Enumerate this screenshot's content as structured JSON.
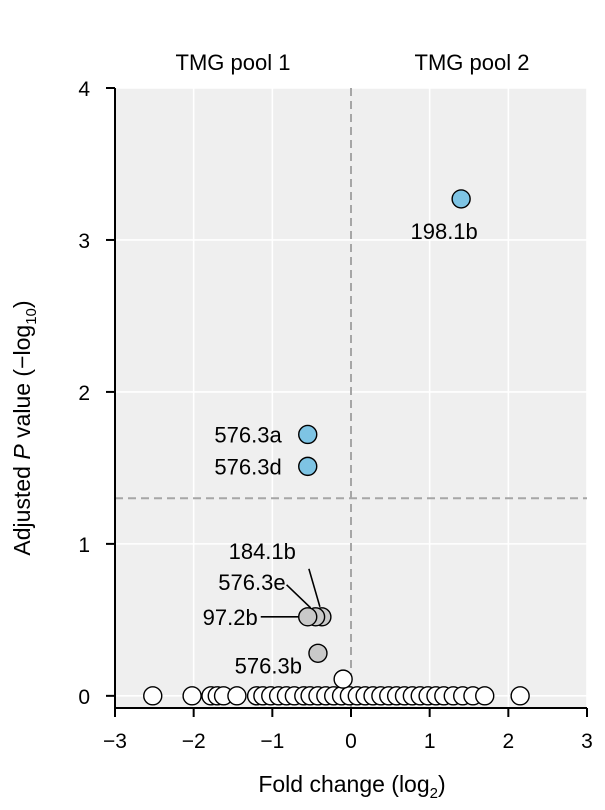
{
  "chart_data": {
    "type": "scatter",
    "title": "",
    "xlabel": "Fold change (log",
    "xlabel_sub": "2",
    "xlabel_end": ")",
    "ylabel": "Adjusted ",
    "ylabel_italic": "P",
    "ylabel_mid": " value (−log",
    "ylabel_sub": "10",
    "ylabel_end": ")",
    "xlim": [
      -3,
      3
    ],
    "ylim": [
      -0.08,
      4
    ],
    "x_ticks": [
      -3,
      -2,
      -1,
      0,
      1,
      2,
      3
    ],
    "x_tick_labels": [
      "−3",
      "−2",
      "−1",
      "0",
      "1",
      "2",
      "3"
    ],
    "y_ticks": [
      0,
      1,
      2,
      3,
      4
    ],
    "y_tick_labels": [
      "0",
      "1",
      "2",
      "3",
      "4"
    ],
    "grid": true,
    "reference_lines": {
      "vertical_x": 0,
      "horizontal_y": 1.3
    },
    "group_labels": {
      "left": "TMG pool 1",
      "right": "TMG pool 2"
    },
    "colors": {
      "significant": "#7ec4e4",
      "labeled": "#c9c9c9",
      "other": "#ffffff",
      "panel": "#efefef",
      "grid": "#ffffff",
      "reference": "#a6a6a6"
    },
    "highlighted_points": [
      {
        "label": "198.1b",
        "x": 1.4,
        "y": 3.27,
        "group": "significant"
      },
      {
        "label": "576.3a",
        "x": -0.55,
        "y": 1.72,
        "group": "significant"
      },
      {
        "label": "576.3d",
        "x": -0.55,
        "y": 1.51,
        "group": "significant"
      },
      {
        "label": "184.1b",
        "x": -0.37,
        "y": 0.52,
        "group": "labeled"
      },
      {
        "label": "576.3e",
        "x": -0.45,
        "y": 0.52,
        "group": "labeled"
      },
      {
        "label": "97.2b",
        "x": -0.55,
        "y": 0.52,
        "group": "labeled"
      },
      {
        "label": "576.3b",
        "x": -0.42,
        "y": 0.28,
        "group": "labeled"
      }
    ],
    "other_points": {
      "y": 0,
      "x": [
        -2.52,
        -2.02,
        -1.78,
        -1.7,
        -1.62,
        -1.45,
        -1.2,
        -1.12,
        -1.02,
        -0.92,
        -0.82,
        -0.72,
        -0.6,
        -0.52,
        -0.42,
        -0.32,
        -0.22,
        -0.12,
        -0.02,
        0.08,
        0.18,
        0.28,
        0.38,
        0.48,
        0.58,
        0.68,
        0.78,
        0.88,
        0.98,
        1.08,
        1.18,
        1.3,
        1.42,
        1.55,
        1.7,
        2.15
      ],
      "extra": [
        {
          "x": -0.1,
          "y": 0.11
        }
      ]
    }
  }
}
